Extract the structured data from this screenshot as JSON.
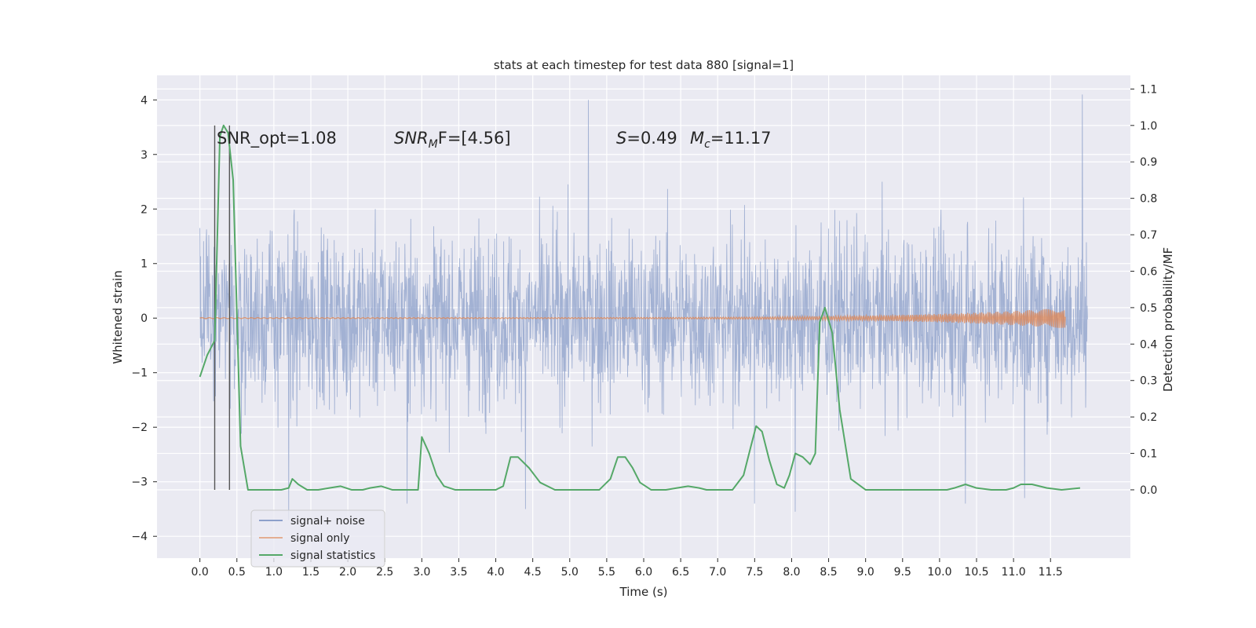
{
  "chart_data": {
    "type": "line",
    "title": "stats at each timestep for test data 880 [signal=1]",
    "xlabel": "Time (s)",
    "ylabel": "Whitened strain",
    "y2label": "Detection probability/MF",
    "xlim": [
      -0.58,
      12.58
    ],
    "ylim": [
      -4.4,
      4.45
    ],
    "y2lim": [
      -0.1875,
      1.1375
    ],
    "x_ticks": [
      0.0,
      0.5,
      1.0,
      1.5,
      2.0,
      2.5,
      3.0,
      3.5,
      4.0,
      4.5,
      5.0,
      5.5,
      6.0,
      6.5,
      7.0,
      7.5,
      8.0,
      8.5,
      9.0,
      9.5,
      10.0,
      10.5,
      11.0,
      11.5
    ],
    "x_tick_labels": [
      "0.0",
      "0.5",
      "1.0",
      "1.5",
      "2.0",
      "2.5",
      "3.0",
      "3.5",
      "4.0",
      "4.5",
      "5.0",
      "5.5",
      "6.0",
      "6.5",
      "7.0",
      "7.5",
      "8.0",
      "8.5",
      "9.0",
      "9.5",
      "10.0",
      "10.5",
      "11.0",
      "11.5"
    ],
    "y_ticks": [
      -4,
      -3,
      -2,
      -1,
      0,
      1,
      2,
      3,
      4
    ],
    "y_tick_labels": [
      "−4",
      "−3",
      "−2",
      "−1",
      "0",
      "1",
      "2",
      "3",
      "4"
    ],
    "y2_ticks": [
      0.0,
      0.1,
      0.2,
      0.3,
      0.4,
      0.5,
      0.6,
      0.7,
      0.8,
      0.9,
      1.0,
      1.1
    ],
    "y2_tick_labels": [
      "0.0",
      "0.1",
      "0.2",
      "0.3",
      "0.4",
      "0.5",
      "0.6",
      "0.7",
      "0.8",
      "0.9",
      "1.0",
      "1.1"
    ],
    "grid": true,
    "legend_position": "lower-left",
    "annotations": {
      "snr_opt": "SNR_opt=1.08",
      "snr_mf_main": "SNR",
      "snr_mf_sub": "M",
      "snr_mf_rest": "F=[4.56]",
      "s_main": "S",
      "s_rest": "=0.49",
      "mc_main": "M",
      "mc_sub": "c",
      "mc_rest": "=11.17"
    },
    "vertical_markers": [
      0.2,
      0.4
    ],
    "series": [
      {
        "name": "signal+ noise",
        "color": "#8da0cb",
        "x_range": [
          0.0,
          12.0
        ],
        "envelope": {
          "core": [
            -1.25,
            1.35
          ],
          "typical_peaks": [
            -2.2,
            2.3
          ]
        },
        "notable_spikes": [
          {
            "x": 5.25,
            "y": 4.0
          },
          {
            "x": 11.93,
            "y": 4.1
          },
          {
            "x": 1.2,
            "y": -3.7
          },
          {
            "x": 2.8,
            "y": -3.4
          },
          {
            "x": 4.4,
            "y": -3.5
          },
          {
            "x": 7.5,
            "y": -3.4
          },
          {
            "x": 8.05,
            "y": -3.55
          },
          {
            "x": 10.35,
            "y": -3.4
          },
          {
            "x": 11.15,
            "y": -3.3
          }
        ]
      },
      {
        "name": "signal only",
        "color": "#dd8452",
        "x_range": [
          0.0,
          11.7
        ],
        "peak_amplitude_end": 0.18
      },
      {
        "name": "signal statistics",
        "color": "#55a868",
        "axis": "right",
        "x": [
          0.0,
          0.1,
          0.15,
          0.2,
          0.27,
          0.32,
          0.38,
          0.45,
          0.55,
          0.65,
          0.8,
          1.0,
          1.1,
          1.2,
          1.25,
          1.33,
          1.45,
          1.6,
          1.75,
          1.9,
          2.05,
          2.2,
          2.3,
          2.45,
          2.6,
          2.85,
          2.95,
          3.0,
          3.1,
          3.2,
          3.3,
          3.45,
          3.6,
          3.8,
          4.0,
          4.1,
          4.2,
          4.3,
          4.45,
          4.6,
          4.8,
          5.0,
          5.2,
          5.4,
          5.55,
          5.65,
          5.75,
          5.85,
          5.95,
          6.1,
          6.3,
          6.45,
          6.6,
          6.75,
          6.85,
          7.0,
          7.2,
          7.35,
          7.45,
          7.52,
          7.6,
          7.7,
          7.8,
          7.9,
          7.97,
          8.05,
          8.15,
          8.25,
          8.32,
          8.38,
          8.45,
          8.55,
          8.65,
          8.8,
          9.0,
          9.3,
          9.6,
          9.9,
          10.1,
          10.2,
          10.35,
          10.5,
          10.7,
          10.9,
          11.0,
          11.1,
          11.25,
          11.45,
          11.65,
          11.9
        ],
        "y": [
          0.31,
          0.37,
          0.39,
          0.41,
          0.97,
          1.0,
          0.98,
          0.85,
          0.12,
          0.0,
          0.0,
          0.0,
          0.0,
          0.005,
          0.03,
          0.015,
          0.0,
          0.0,
          0.005,
          0.01,
          0.0,
          0.0,
          0.005,
          0.01,
          0.0,
          0.0,
          0.0,
          0.145,
          0.1,
          0.04,
          0.01,
          0.0,
          0.0,
          0.0,
          0.0,
          0.01,
          0.09,
          0.09,
          0.06,
          0.02,
          0.0,
          0.0,
          0.0,
          0.0,
          0.03,
          0.09,
          0.09,
          0.06,
          0.02,
          0.0,
          0.0,
          0.005,
          0.01,
          0.005,
          0.0,
          0.0,
          0.0,
          0.04,
          0.12,
          0.175,
          0.16,
          0.08,
          0.015,
          0.005,
          0.04,
          0.1,
          0.09,
          0.07,
          0.1,
          0.46,
          0.5,
          0.43,
          0.22,
          0.03,
          0.0,
          0.0,
          0.0,
          0.0,
          0.0,
          0.005,
          0.015,
          0.005,
          0.0,
          0.0,
          0.005,
          0.015,
          0.015,
          0.005,
          0.0,
          0.005
        ]
      }
    ]
  }
}
